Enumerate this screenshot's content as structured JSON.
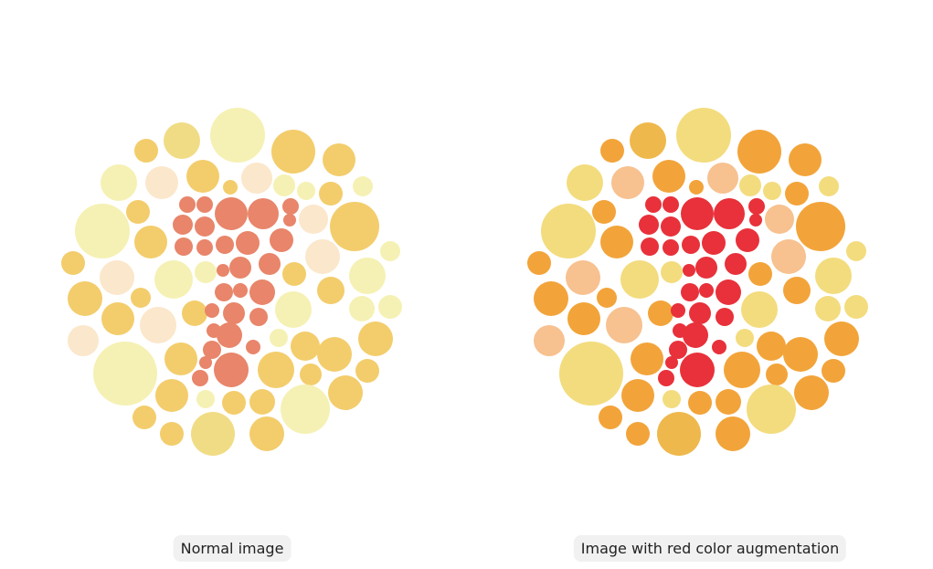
{
  "captions": [
    "Normal image",
    "Image with red color augmentation"
  ]
}
